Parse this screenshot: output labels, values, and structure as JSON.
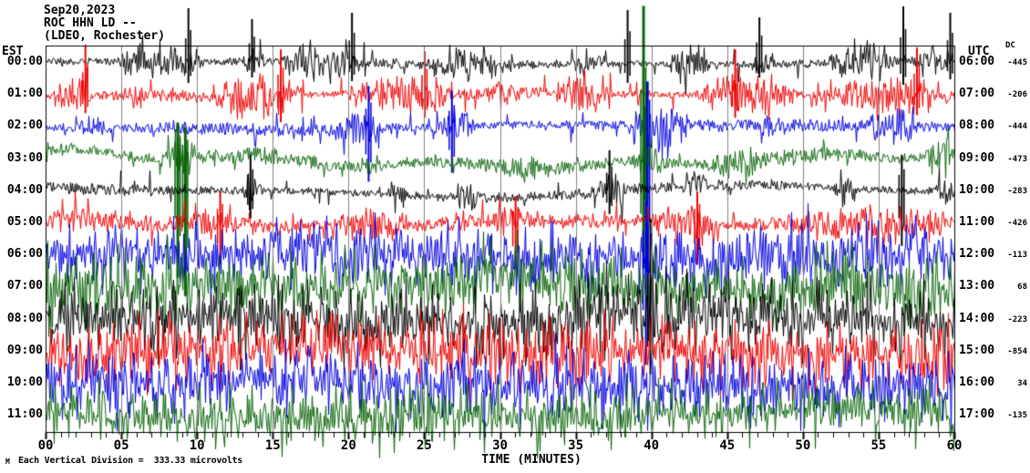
{
  "header": {
    "date": "Sep20,2023",
    "station": "ROC HHN LD --",
    "network": "(LDEO, Rochester)"
  },
  "left_axis": {
    "label": "EST"
  },
  "right_axis": {
    "label": "UTC",
    "dc_label": "DC"
  },
  "x_axis": {
    "title": "TIME (MINUTES)",
    "tick_labels": [
      "00",
      "05",
      "10",
      "15",
      "20",
      "25",
      "30",
      "35",
      "40",
      "45",
      "50",
      "55",
      "60"
    ],
    "tick_minutes": [
      0,
      5,
      10,
      15,
      20,
      25,
      30,
      35,
      40,
      45,
      50,
      55,
      60
    ]
  },
  "footer": {
    "micro_mark": "M",
    "scale_note": "Each Vertical Division =  333.33 microvolts"
  },
  "chart_data": {
    "type": "line",
    "subtype": "helicorder-seismogram",
    "title": "ROC HHN LD -- (LDEO, Rochester) Sep20,2023",
    "xlabel": "TIME (MINUTES)",
    "x_range_minutes": [
      0,
      60
    ],
    "minutes_per_division": 5,
    "grid": true,
    "colors": {
      "black": "#000000",
      "red": "#ee0000",
      "blue": "#0000dd",
      "green": "#0a640a",
      "grid": "#808080",
      "border": "#000000"
    },
    "rows": [
      {
        "est": "00:00",
        "utc": "06:00",
        "dc": "-445",
        "color": "black",
        "seed": 11,
        "base": 4.5,
        "wander": 3,
        "spike_prob": 0.05,
        "spike_amp": 24,
        "bursts": [
          [
            4.5,
            10.5,
            26
          ],
          [
            13,
            14.5,
            18
          ],
          [
            15.5,
            20.5,
            30
          ],
          [
            25,
            30.5,
            24
          ],
          [
            34.5,
            37,
            16
          ],
          [
            41,
            44,
            26
          ],
          [
            46.5,
            48,
            18
          ],
          [
            51.5,
            56,
            30
          ],
          [
            57.5,
            60,
            24
          ]
        ],
        "events": [
          [
            9.4,
            60,
            22
          ],
          [
            13.6,
            48,
            16
          ],
          [
            20.2,
            55,
            20
          ],
          [
            38.4,
            58,
            22
          ],
          [
            47.1,
            50,
            16
          ],
          [
            56.6,
            62,
            24
          ],
          [
            59.7,
            55,
            18
          ]
        ]
      },
      {
        "est": "01:00",
        "utc": "07:00",
        "dc": "-206",
        "color": "red",
        "seed": 22,
        "base": 5,
        "wander": 3,
        "spike_prob": 0.07,
        "spike_amp": 24,
        "bursts": [
          [
            0.5,
            3,
            28
          ],
          [
            5.5,
            6.5,
            16
          ],
          [
            11,
            17,
            30
          ],
          [
            20,
            27,
            26
          ],
          [
            29,
            31.5,
            20
          ],
          [
            33.5,
            37.5,
            24
          ],
          [
            43,
            49.5,
            30
          ],
          [
            52,
            60,
            26
          ]
        ],
        "events": [
          [
            2.6,
            55,
            20
          ],
          [
            15.5,
            50,
            30
          ],
          [
            25.0,
            48,
            25
          ],
          [
            45.5,
            50,
            25
          ],
          [
            57.5,
            52,
            22
          ]
        ]
      },
      {
        "est": "02:00",
        "utc": "08:00",
        "dc": "-444",
        "color": "blue",
        "seed": 33,
        "base": 5.5,
        "wander": 4,
        "spike_prob": 0.06,
        "spike_amp": 22,
        "bursts": [
          [
            2,
            4.5,
            18
          ],
          [
            19,
            22.5,
            32
          ],
          [
            25.5,
            28.5,
            24
          ],
          [
            38.5,
            42.5,
            40
          ],
          [
            47,
            49,
            18
          ],
          [
            54,
            57.5,
            28
          ]
        ],
        "events": [
          [
            21.3,
            45,
            60
          ],
          [
            26.8,
            40,
            50
          ],
          [
            39.7,
            50,
            160
          ]
        ]
      },
      {
        "est": "03:00",
        "utc": "09:00",
        "dc": "-473",
        "color": "green",
        "seed": 44,
        "base": 7,
        "wander": 12,
        "spike_prob": 0.05,
        "spike_amp": 20,
        "bursts": [
          [
            7.5,
            10,
            36
          ],
          [
            20.5,
            22.5,
            16
          ],
          [
            30,
            33,
            18
          ],
          [
            38.5,
            41,
            30
          ],
          [
            44,
            47.5,
            26
          ],
          [
            58,
            60,
            30
          ]
        ],
        "events": [
          [
            8.7,
            40,
            130
          ],
          [
            9.2,
            35,
            150
          ],
          [
            39.45,
            168,
            120
          ]
        ]
      },
      {
        "est": "04:00",
        "utc": "10:00",
        "dc": "-283",
        "color": "black",
        "seed": 55,
        "base": 5,
        "wander": 8,
        "spike_prob": 0.05,
        "spike_amp": 22,
        "bursts": [
          [
            13,
            14.2,
            28
          ],
          [
            22.5,
            23.8,
            22
          ],
          [
            27,
            28.6,
            28
          ],
          [
            36.5,
            38.2,
            30
          ],
          [
            42,
            43.6,
            26
          ],
          [
            52,
            53.6,
            24
          ],
          [
            58.5,
            60,
            18
          ]
        ],
        "events": [
          [
            13.5,
            40,
            30
          ],
          [
            37.2,
            45,
            25
          ],
          [
            56.5,
            40,
            60
          ]
        ]
      },
      {
        "est": "05:00",
        "utc": "11:00",
        "dc": "-426",
        "color": "red",
        "seed": 66,
        "base": 7,
        "wander": 4,
        "spike_prob": 0.12,
        "spike_amp": 24,
        "bursts": [
          [
            0,
            5,
            22
          ],
          [
            9,
            13,
            20
          ],
          [
            19,
            23.5,
            22
          ],
          [
            29,
            33.5,
            22
          ],
          [
            40,
            44.5,
            26
          ],
          [
            49,
            60,
            26
          ]
        ],
        "events": [
          [
            11.5,
            35,
            45
          ],
          [
            31.0,
            30,
            50
          ],
          [
            43.0,
            35,
            45
          ]
        ]
      },
      {
        "est": "06:00",
        "utc": "12:00",
        "dc": "-113",
        "color": "blue",
        "seed": 77,
        "base": 16,
        "wander": 6,
        "spike_prob": 0.28,
        "spike_amp": 42,
        "bursts": [
          [
            0,
            60,
            14
          ]
        ],
        "events": [
          [
            39.6,
            60,
            120
          ]
        ]
      },
      {
        "est": "07:00",
        "utc": "13:00",
        "dc": "68",
        "color": "green",
        "seed": 88,
        "base": 18,
        "wander": 8,
        "spike_prob": 0.28,
        "spike_amp": 44,
        "bursts": [
          [
            0,
            60,
            14
          ]
        ],
        "events": []
      },
      {
        "est": "08:00",
        "utc": "14:00",
        "dc": "-223",
        "color": "black",
        "seed": 99,
        "base": 18,
        "wander": 8,
        "spike_prob": 0.3,
        "spike_amp": 48,
        "bursts": [
          [
            0,
            60,
            16
          ]
        ],
        "events": [
          [
            39.9,
            110,
            60
          ]
        ]
      },
      {
        "est": "09:00",
        "utc": "15:00",
        "dc": "-854",
        "color": "red",
        "seed": 111,
        "base": 16,
        "wander": 6,
        "spike_prob": 0.3,
        "spike_amp": 46,
        "bursts": [
          [
            0,
            60,
            14
          ]
        ],
        "events": []
      },
      {
        "est": "10:00",
        "utc": "16:00",
        "dc": "34",
        "color": "blue",
        "seed": 122,
        "base": 16,
        "wander": 6,
        "spike_prob": 0.3,
        "spike_amp": 46,
        "bursts": [
          [
            0,
            60,
            14
          ]
        ],
        "events": []
      },
      {
        "est": "11:00",
        "utc": "17:00",
        "dc": "-135",
        "color": "green",
        "seed": 133,
        "base": 14,
        "wander": 6,
        "spike_prob": 0.26,
        "spike_amp": 40,
        "bursts": [
          [
            0,
            60,
            12
          ]
        ],
        "events": []
      }
    ]
  }
}
